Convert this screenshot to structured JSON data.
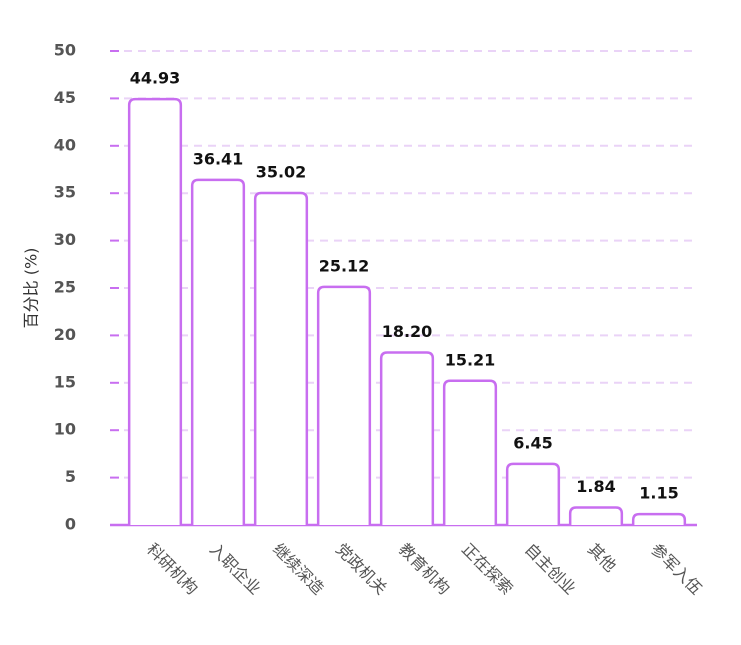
{
  "chart_data": {
    "type": "bar",
    "ylabel": "百分比 (%)",
    "categories": [
      "科研机构",
      "入职企业",
      "继续深造",
      "党政机关",
      "教育机构",
      "正在探索",
      "自主创业",
      "其他",
      "参军入伍"
    ],
    "values": [
      44.93,
      36.41,
      35.02,
      25.12,
      18.2,
      15.21,
      6.45,
      1.84,
      1.15
    ],
    "value_labels": [
      "44.93",
      "36.41",
      "35.02",
      "25.12",
      "18.20",
      "15.21",
      "6.45",
      "1.84",
      "1.15"
    ],
    "color": "#c86ef0",
    "ylim": [
      0,
      50
    ],
    "yticks": [
      0,
      5,
      10,
      15,
      20,
      25,
      30,
      35,
      40,
      45,
      50
    ],
    "grid": true
  }
}
